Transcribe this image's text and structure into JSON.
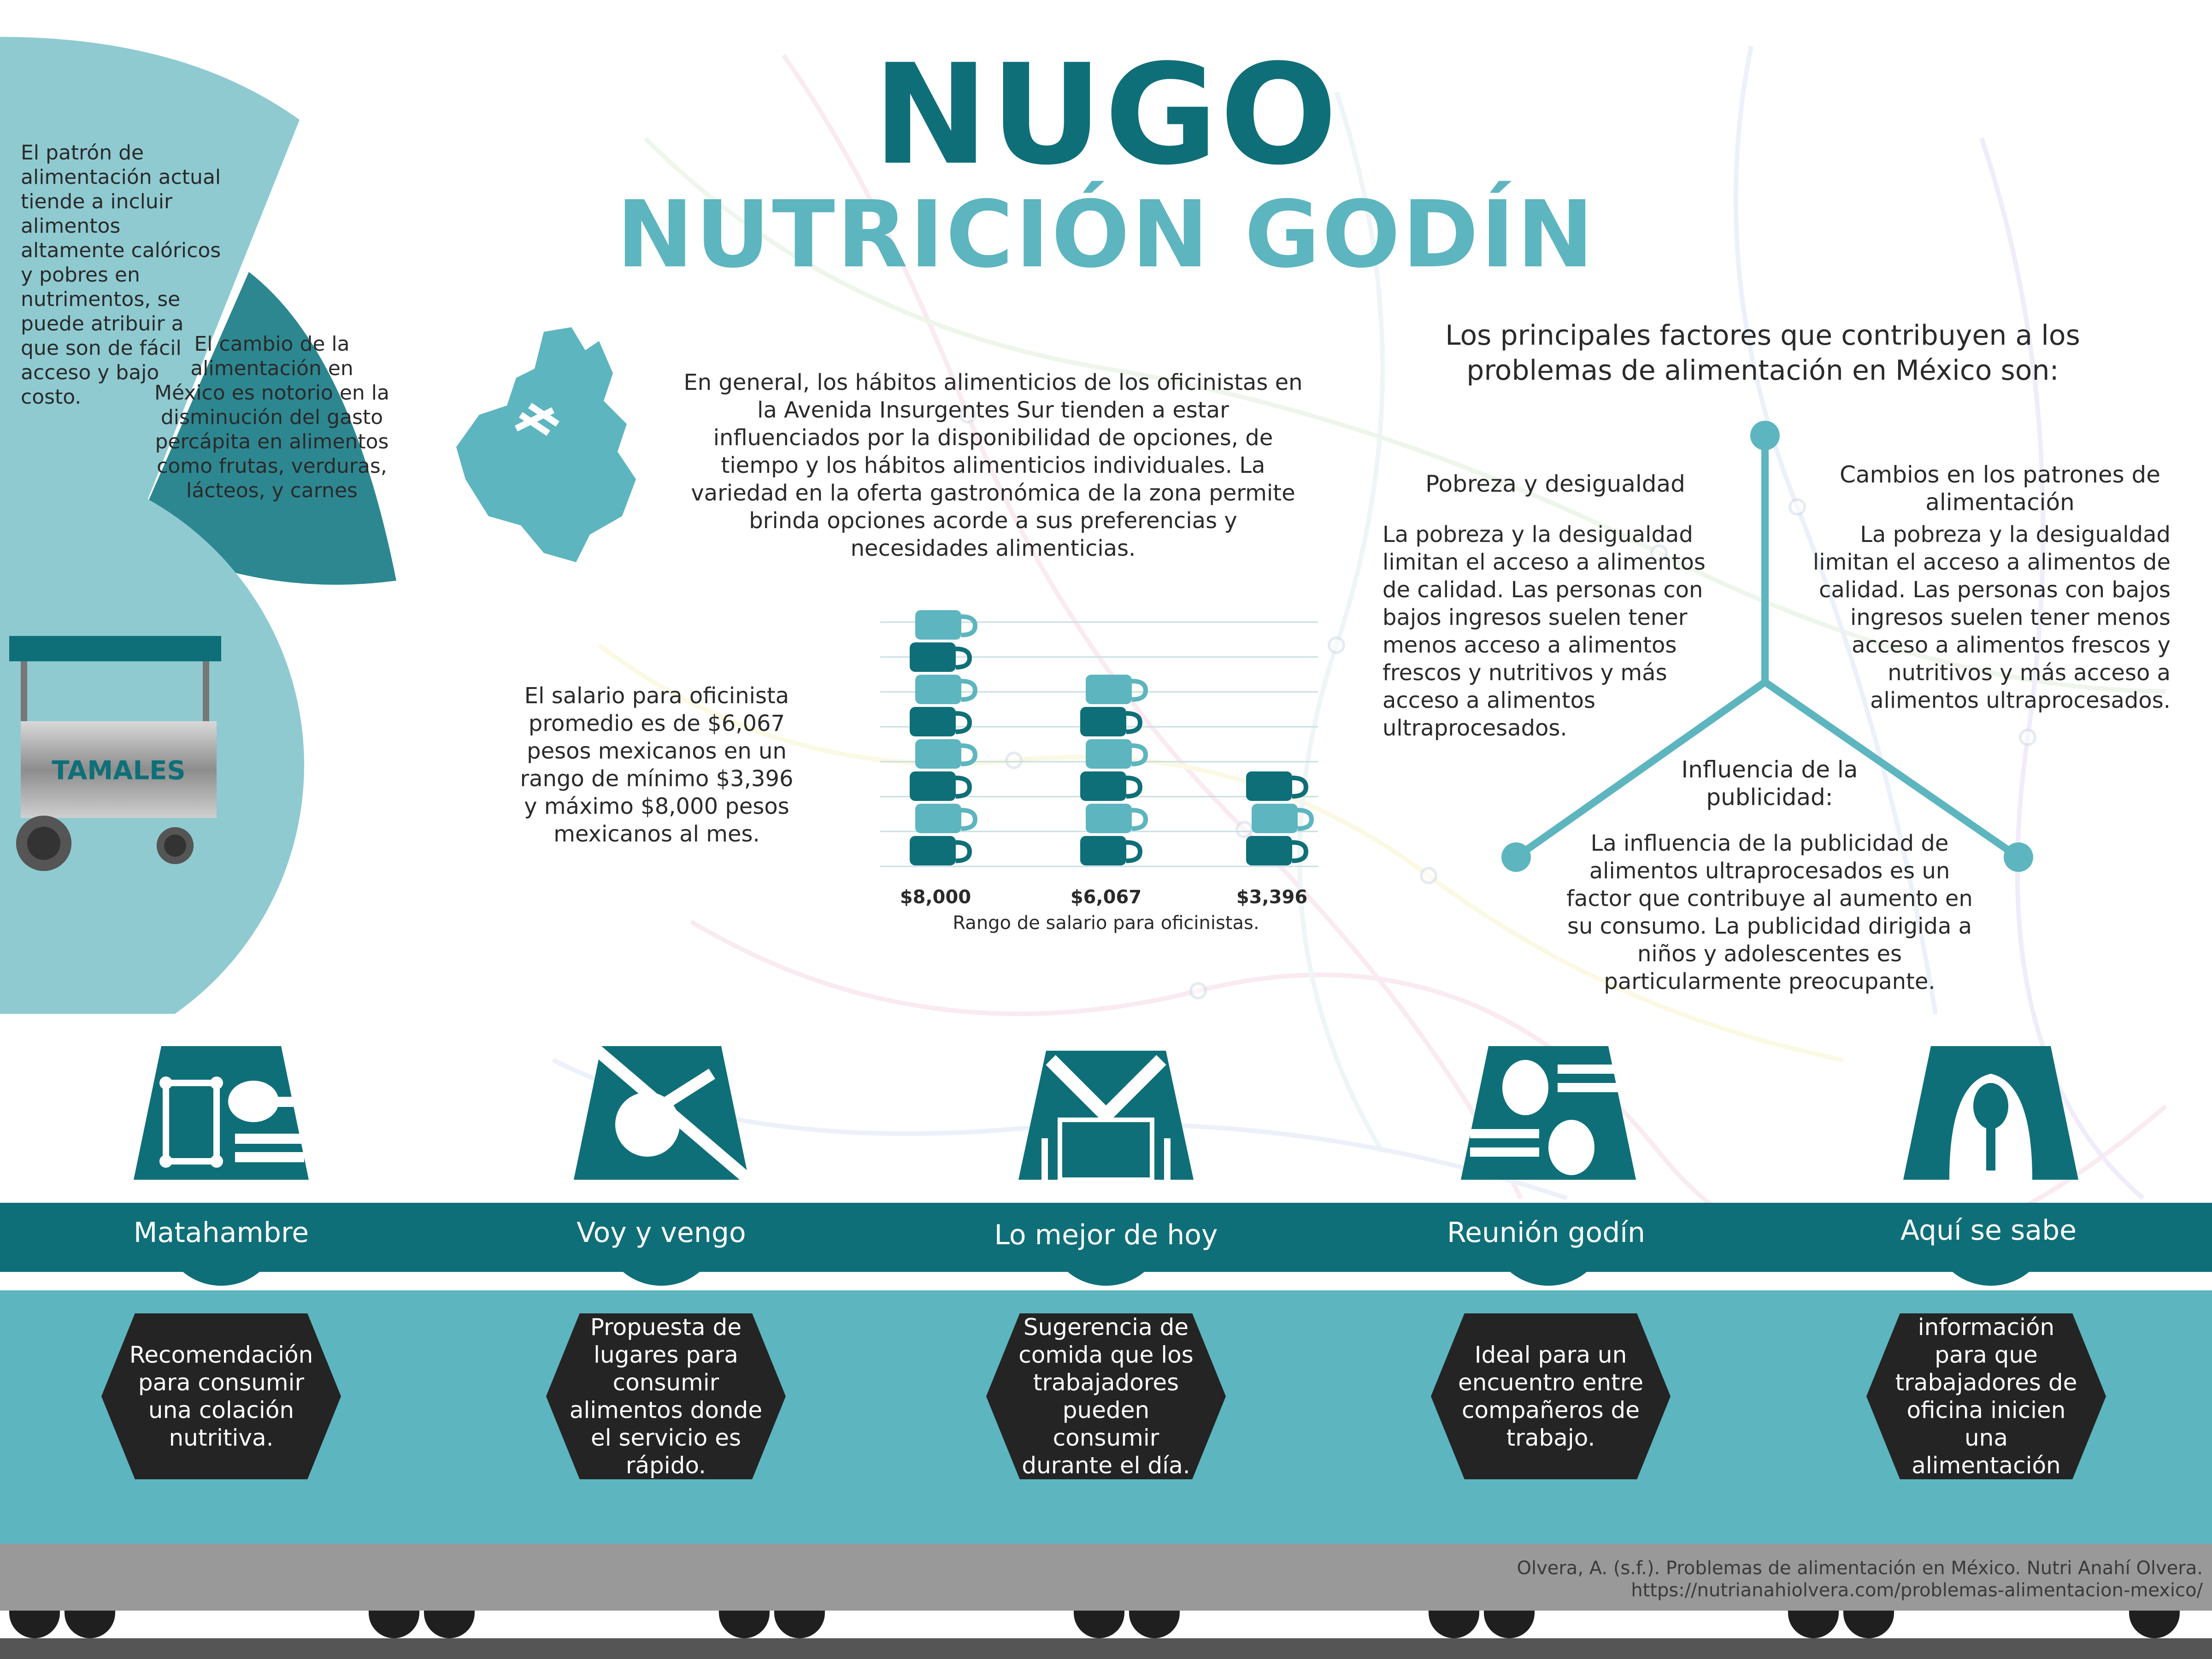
{
  "title": {
    "main": "NUGO",
    "sub": "NUTRICIÓN GODÍN"
  },
  "left_panel": {
    "outer_text": "El patrón de alimentación actual tiende a incluir alimentos altamente calóricos y pobres en nutrimentos, se puede atribuir a que son de fácil acceso y bajo costo.",
    "inner_text": "El cambio de la alimentación en México es notorio en la disminución del gasto percápita en alimentos como frutas, verduras, lácteos, y carnes",
    "cart_label": "TAMALES"
  },
  "intro_text": "En general, los hábitos alimenticios de los oficinistas en la Avenida Insurgentes Sur tienden a estar influenciados por la disponibilidad de opciones, de tiempo y los hábitos alimenticios individuales. La variedad en la oferta gastronómica de la zona permite brinda opciones acorde a sus preferencias y necesidades alimenticias.",
  "salary_text": "El salario para oficinista promedio es de $6,067 pesos mexicanos en un rango de mínimo $3,396 y máximo $8,000 pesos mexicanos al mes.",
  "chart_data": {
    "type": "bar",
    "categories": [
      "$8,000",
      "$6,067",
      "$3,396"
    ],
    "values": [
      8000,
      6067,
      3396
    ],
    "xlabel": "Rango de salario para oficinistas.",
    "ylim": [
      0,
      8000
    ]
  },
  "factors": {
    "heading": "Los principales factores que contribuyen a los problemas de alimentación en México son:",
    "poverty_title": "Pobreza y desigualdad",
    "poverty_text": "La pobreza y la desigualdad limitan el acceso a alimentos de calidad. Las personas con bajos ingresos suelen tener menos acceso a alimentos frescos y nutritivos y más acceso a alimentos ultraprocesados.",
    "patterns_title": "Cambios en los patrones de alimentación",
    "patterns_text": "La pobreza y la desigualdad limitan el acceso a alimentos de calidad. Las personas con bajos ingresos suelen tener menos acceso a alimentos frescos y nutritivos y más acceso a alimentos ultraprocesados.",
    "ads_title": "Influencia de la publicidad:",
    "ads_text": "La influencia de la publicidad de alimentos ultraprocesados es un factor que contribuye al aumento en su consumo. La publicidad dirigida a niños y adolescentes es particularmente preocupante."
  },
  "modules": [
    {
      "name": "Matahambre",
      "desc": "Recomendación para consumir una colación nutritiva."
    },
    {
      "name": "Voy y vengo",
      "desc": "Propuesta de lugares para consumir alimentos donde el servicio es rápido."
    },
    {
      "name": "Lo mejor de hoy",
      "desc": "Sugerencia de comida que los trabajadores pueden consumir durante el día."
    },
    {
      "name": "Reunión godín",
      "desc": "Ideal para un encuentro entre compañeros de trabajo."
    },
    {
      "name": "Aquí se sabe",
      "desc": "Módulo de información para que trabajadores de oficina inicien una alimentación consciente."
    }
  ],
  "icons": [
    "fork-spoon-icon",
    "eating-hand-icon",
    "open-box-icon",
    "meeting-utensils-icon",
    "spoon-icon"
  ],
  "citation": {
    "line1": "Olvera, A. (s.f.). Problemas de alimentación en México. Nutri Anahí Olvera.",
    "line2": "https://nutrianahiolvera.com/problemas-alimentacion-mexico/"
  },
  "colors": {
    "dark_teal": "#0f6f78",
    "light_teal": "#5db5bf",
    "pale_teal": "#8fcad1",
    "dark": "#242424",
    "gray": "#999999"
  }
}
